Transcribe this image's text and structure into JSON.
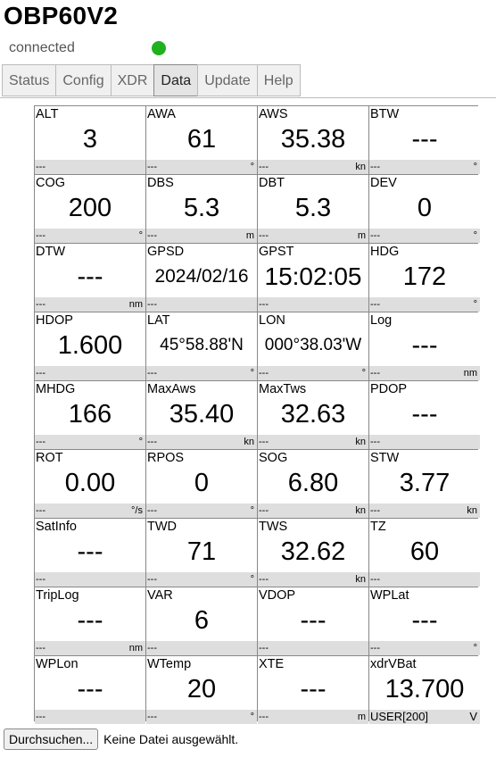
{
  "app": {
    "title": "OBP60V2",
    "status": "connected",
    "status_color": "#1fb11f"
  },
  "tabs": [
    {
      "label": "Status",
      "active": false
    },
    {
      "label": "Config",
      "active": false
    },
    {
      "label": "XDR",
      "active": false
    },
    {
      "label": "Data",
      "active": true
    },
    {
      "label": "Update",
      "active": false
    },
    {
      "label": "Help",
      "active": false
    }
  ],
  "cells": [
    {
      "name": "ALT",
      "value": "3",
      "left": "---",
      "unit": ""
    },
    {
      "name": "AWA",
      "value": "61",
      "left": "---",
      "unit": "°"
    },
    {
      "name": "AWS",
      "value": "35.38",
      "left": "---",
      "unit": "kn"
    },
    {
      "name": "BTW",
      "value": "---",
      "left": "---",
      "unit": "°"
    },
    {
      "name": "COG",
      "value": "200",
      "left": "---",
      "unit": "°"
    },
    {
      "name": "DBS",
      "value": "5.3",
      "left": "---",
      "unit": "m"
    },
    {
      "name": "DBT",
      "value": "5.3",
      "left": "---",
      "unit": "m"
    },
    {
      "name": "DEV",
      "value": "0",
      "left": "---",
      "unit": "°"
    },
    {
      "name": "DTW",
      "value": "---",
      "left": "---",
      "unit": "nm"
    },
    {
      "name": "GPSD",
      "value": "2024/02/16",
      "left": "---",
      "unit": ""
    },
    {
      "name": "GPST",
      "value": "15:02:05",
      "left": "---",
      "unit": ""
    },
    {
      "name": "HDG",
      "value": "172",
      "left": "---",
      "unit": "°"
    },
    {
      "name": "HDOP",
      "value": "1.600",
      "left": "---",
      "unit": ""
    },
    {
      "name": "LAT",
      "value": "45°58.88'N",
      "left": "---",
      "unit": "°"
    },
    {
      "name": "LON",
      "value": "000°38.03'W",
      "left": "---",
      "unit": "°"
    },
    {
      "name": "Log",
      "value": "---",
      "left": "---",
      "unit": "nm"
    },
    {
      "name": "MHDG",
      "value": "166",
      "left": "---",
      "unit": "°"
    },
    {
      "name": "MaxAws",
      "value": "35.40",
      "left": "---",
      "unit": "kn"
    },
    {
      "name": "MaxTws",
      "value": "32.63",
      "left": "---",
      "unit": "kn"
    },
    {
      "name": "PDOP",
      "value": "---",
      "left": "---",
      "unit": ""
    },
    {
      "name": "ROT",
      "value": "0.00",
      "left": "---",
      "unit": "°/s"
    },
    {
      "name": "RPOS",
      "value": "0",
      "left": "---",
      "unit": "°"
    },
    {
      "name": "SOG",
      "value": "6.80",
      "left": "---",
      "unit": "kn"
    },
    {
      "name": "STW",
      "value": "3.77",
      "left": "---",
      "unit": "kn"
    },
    {
      "name": "SatInfo",
      "value": "---",
      "left": "---",
      "unit": ""
    },
    {
      "name": "TWD",
      "value": "71",
      "left": "---",
      "unit": "°"
    },
    {
      "name": "TWS",
      "value": "32.62",
      "left": "---",
      "unit": "kn"
    },
    {
      "name": "TZ",
      "value": "60",
      "left": "---",
      "unit": ""
    },
    {
      "name": "TripLog",
      "value": "---",
      "left": "---",
      "unit": "nm"
    },
    {
      "name": "VAR",
      "value": "6",
      "left": "---",
      "unit": ""
    },
    {
      "name": "VDOP",
      "value": "---",
      "left": "---",
      "unit": ""
    },
    {
      "name": "WPLat",
      "value": "---",
      "left": "---",
      "unit": "°"
    },
    {
      "name": "WPLon",
      "value": "---",
      "left": "---",
      "unit": ""
    },
    {
      "name": "WTemp",
      "value": "20",
      "left": "---",
      "unit": "°"
    },
    {
      "name": "XTE",
      "value": "---",
      "left": "---",
      "unit": "m"
    },
    {
      "name": "xdrVBat",
      "value": "13.700",
      "left": "USER[200]",
      "unit": "V"
    }
  ],
  "upload": {
    "button_label": "Durchsuchen...",
    "status_text": "Keine Datei ausgewählt."
  }
}
